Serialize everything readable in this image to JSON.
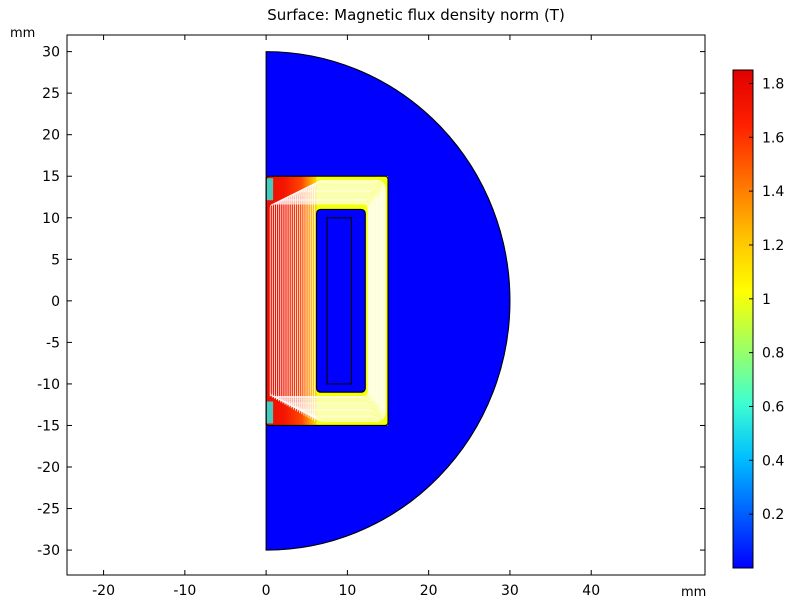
{
  "chart_data": {
    "type": "heatmap",
    "title": "Surface: Magnetic flux density norm (T)",
    "x_unit_label": "mm",
    "y_unit_label": "mm",
    "xlim": [
      -24.5,
      54
    ],
    "ylim": [
      -33,
      32
    ],
    "x_ticks": [
      -20,
      -10,
      0,
      10,
      20,
      30,
      40
    ],
    "y_ticks": [
      30,
      25,
      20,
      15,
      10,
      5,
      0,
      -5,
      -10,
      -15,
      -20,
      -25,
      -30
    ],
    "grid": false,
    "domain": {
      "shape": "half-disk",
      "center": [
        0,
        0
      ],
      "radius": 30
    },
    "core": {
      "x_range": [
        0,
        15
      ],
      "y_range": [
        -15,
        15
      ]
    },
    "coil_window": {
      "x_range": [
        6.2,
        12.2
      ],
      "y_range": [
        -11,
        11
      ]
    },
    "coil": {
      "x_range": [
        7.5,
        10.5
      ],
      "y_range": [
        -10,
        10
      ]
    },
    "field_summary": {
      "air_region_T": 0.0,
      "core_inner_leg_T": 1.72,
      "core_outer_leg_T": 1.0,
      "core_top_bottom_T": 1.0
    },
    "colorbar": {
      "range": [
        0,
        1.85
      ],
      "ticks": [
        1.8,
        1.6,
        1.4,
        1.2,
        1,
        0.8,
        0.6,
        0.4,
        0.2
      ],
      "colors": [
        "#0000ff",
        "#0060ff",
        "#00c0ff",
        "#40ffd0",
        "#a0ff60",
        "#ffff00",
        "#ffc000",
        "#ff7000",
        "#ff2000",
        "#e00000"
      ]
    }
  }
}
